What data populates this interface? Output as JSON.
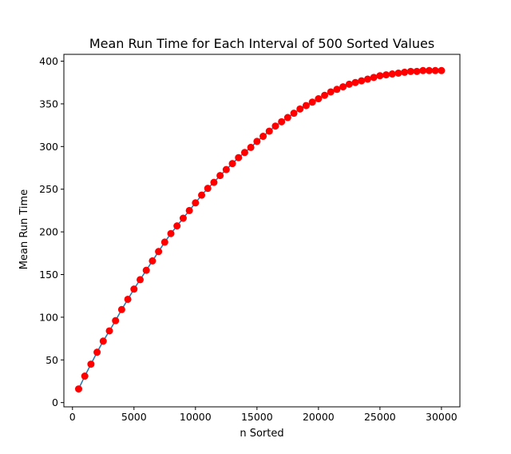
{
  "chart_data": {
    "type": "line",
    "title": "Mean Run Time for Each Interval of 500 Sorted Values",
    "xlabel": "n Sorted",
    "ylabel": "Mean Run Time",
    "xlim": [
      -700,
      31500
    ],
    "ylim": [
      -5,
      408
    ],
    "xticks": [
      0,
      5000,
      10000,
      15000,
      20000,
      25000,
      30000
    ],
    "yticks": [
      0,
      50,
      100,
      150,
      200,
      250,
      300,
      350,
      400
    ],
    "grid": false,
    "legend": "none",
    "line_color": "#1f77b4",
    "marker_color": "#ff0000",
    "series": [
      {
        "x": [
          500,
          1000,
          1500,
          2000,
          2500,
          3000,
          3500,
          4000,
          4500,
          5000,
          5500,
          6000,
          6500,
          7000,
          7500,
          8000,
          8500,
          9000,
          9500,
          10000,
          10500,
          11000,
          11500,
          12000,
          12500,
          13000,
          13500,
          14000,
          14500,
          15000,
          15500,
          16000,
          16500,
          17000,
          17500,
          18000,
          18500,
          19000,
          19500,
          20000,
          20500,
          21000,
          21500,
          22000,
          22500,
          23000,
          23500,
          24000,
          24500,
          25000,
          25500,
          26000,
          26500,
          27000,
          27500,
          28000,
          28500,
          29000,
          29500,
          30000
        ],
        "values": [
          16,
          31,
          45,
          59,
          72,
          84,
          96,
          109,
          121,
          133,
          144,
          155,
          166,
          177,
          188,
          198,
          207,
          216,
          225,
          234,
          243,
          251,
          258,
          266,
          273,
          280,
          287,
          293,
          299,
          306,
          312,
          318,
          324,
          329,
          334,
          339,
          344,
          348,
          352,
          356,
          360,
          364,
          367,
          370,
          373,
          375,
          377,
          379,
          381,
          383,
          384,
          385,
          386,
          387,
          388,
          388,
          389,
          389,
          389,
          389
        ]
      }
    ]
  }
}
